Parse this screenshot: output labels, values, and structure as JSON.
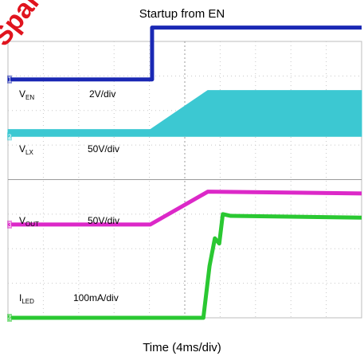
{
  "chart_data": {
    "type": "line",
    "title": "Startup from EN",
    "xlabel": "Time (4ms/div)",
    "ylabel": "",
    "grid": true,
    "x_divisions": 10,
    "y_divisions": 8,
    "xlim": [
      0,
      40
    ],
    "x_unit": "ms",
    "series": [
      {
        "id": "ven",
        "label_main": "V",
        "label_sub": "EN",
        "scale": "2V/div",
        "color": "#1a28b4",
        "marker": "1",
        "x": [
          0,
          16.3,
          16.3,
          40
        ],
        "y": [
          2.9,
          2.9,
          4.4,
          4.4
        ]
      },
      {
        "id": "vlx",
        "label_main": "V",
        "label_sub": "LX",
        "scale": "50V/div",
        "color": "#3cc8d2",
        "marker": "2",
        "x": [
          0,
          16.1,
          22.6,
          40
        ],
        "upper": [
          1.45,
          1.45,
          2.58,
          2.58
        ],
        "lower": [
          1.25,
          1.25,
          1.25,
          1.25
        ]
      },
      {
        "id": "vout",
        "label_main": "V",
        "label_sub": "OUT",
        "scale": "50V/div",
        "color": "#dc28c8",
        "marker": "3",
        "x": [
          0,
          16.1,
          22.6,
          40
        ],
        "y": [
          -1.3,
          -1.3,
          -0.35,
          -0.4
        ]
      },
      {
        "id": "iled",
        "label_main": "I",
        "label_sub": "LED",
        "scale": "100mA/div",
        "color": "#2ac832",
        "marker": "4",
        "x": [
          0,
          22.1,
          22.8,
          23.4,
          23.9,
          24.3,
          25.2,
          40
        ],
        "y": [
          -4.0,
          -4.0,
          -2.5,
          -1.7,
          -1.85,
          -1.0,
          -1.05,
          -1.1
        ]
      }
    ],
    "watermark": "Sparc"
  }
}
